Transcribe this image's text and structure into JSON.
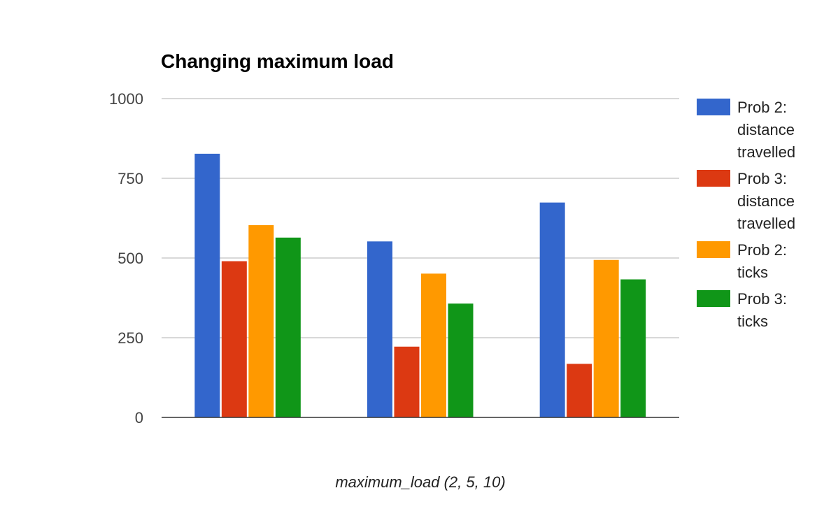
{
  "chart_data": {
    "type": "bar",
    "title": "Changing maximum load",
    "xlabel": "maximum_load (2, 5, 10)",
    "ylabel": "",
    "ylim": [
      0,
      1000
    ],
    "yticks": [
      "0",
      "250",
      "500",
      "750",
      "1000"
    ],
    "ytick_values": [
      0,
      250,
      500,
      750,
      1000
    ],
    "categories": [
      "2",
      "5",
      "10"
    ],
    "show_category_labels": false,
    "grid": true,
    "legend_position": "right",
    "series": [
      {
        "name": "Prob 2: distance travelled",
        "legend_lines": [
          "Prob 2:",
          "distance",
          "travelled"
        ],
        "color": "#3366cc",
        "values": [
          827,
          552,
          674
        ]
      },
      {
        "name": "Prob 3: distance travelled",
        "legend_lines": [
          "Prob 3:",
          "distance",
          "travelled"
        ],
        "color": "#dc3912",
        "values": [
          490,
          222,
          168
        ]
      },
      {
        "name": "Prob 2: ticks",
        "legend_lines": [
          "Prob 2:",
          "ticks"
        ],
        "color": "#ff9900",
        "values": [
          603,
          451,
          494
        ]
      },
      {
        "name": "Prob 3: ticks",
        "legend_lines": [
          "Prob 3:",
          "ticks"
        ],
        "color": "#109618",
        "values": [
          564,
          357,
          433
        ]
      }
    ]
  }
}
